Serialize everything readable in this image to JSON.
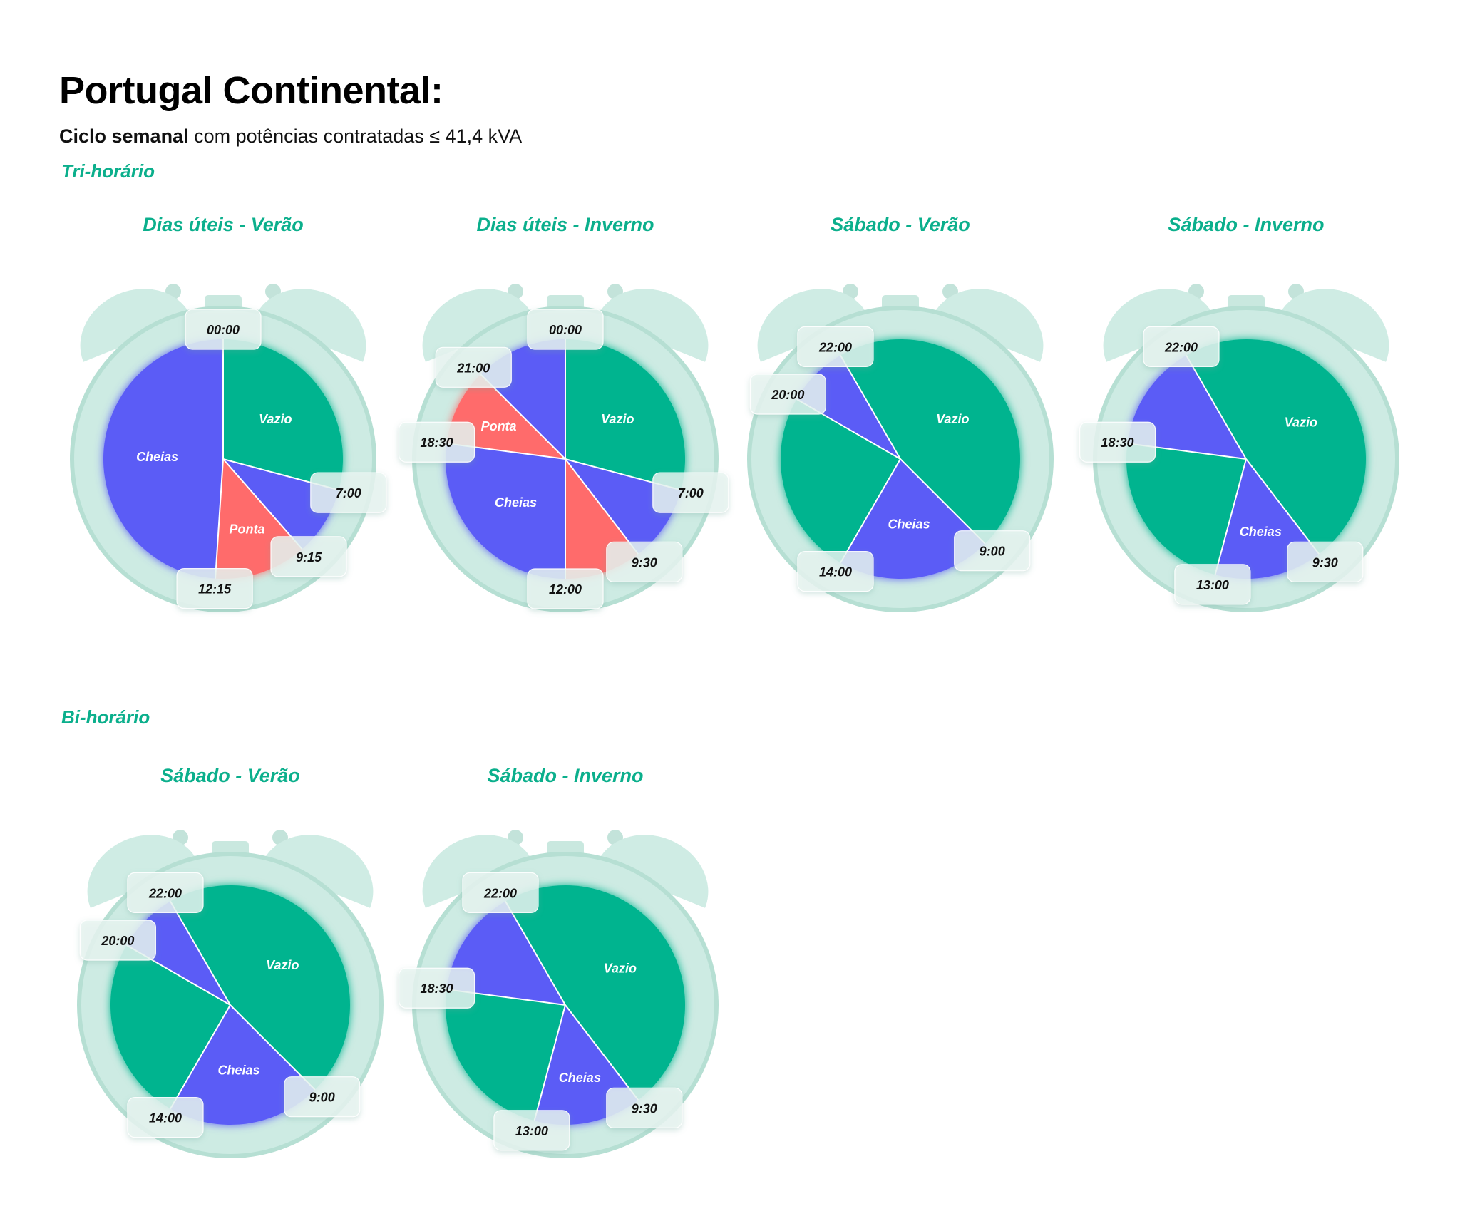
{
  "header": {
    "title": "Portugal Continental:",
    "subtitle_bold": "Ciclo semanal",
    "subtitle_rest": " com potências contratadas ≤ 41,4 kVA"
  },
  "colors": {
    "accent": "#0BAF8C",
    "vazio": "#00B48F",
    "cheias": "#5B5CF6",
    "ponta": "#FF6B6B",
    "clock_body": "#CDEBE3",
    "clock_rim": "#B6DFD3"
  },
  "sections": [
    {
      "title": "Tri-horário"
    },
    {
      "title": "Bi-horário"
    }
  ],
  "chart_data": [
    {
      "type": "pie",
      "title": "Dias úteis - Verão",
      "segments": [
        {
          "from": "00:00",
          "to": "7:00",
          "label": "Vazio",
          "category": "vazio"
        },
        {
          "from": "7:00",
          "to": "9:15",
          "label": "",
          "category": "cheias"
        },
        {
          "from": "9:15",
          "to": "12:15",
          "label": "Ponta",
          "category": "ponta"
        },
        {
          "from": "12:15",
          "to": "00:00",
          "label": "Cheias",
          "category": "cheias"
        }
      ]
    },
    {
      "type": "pie",
      "title": "Dias úteis - Inverno",
      "segments": [
        {
          "from": "00:00",
          "to": "7:00",
          "label": "Vazio",
          "category": "vazio"
        },
        {
          "from": "7:00",
          "to": "9:30",
          "label": "",
          "category": "cheias"
        },
        {
          "from": "9:30",
          "to": "12:00",
          "label": "",
          "category": "ponta"
        },
        {
          "from": "12:00",
          "to": "18:30",
          "label": "Cheias",
          "category": "cheias"
        },
        {
          "from": "18:30",
          "to": "21:00",
          "label": "Ponta",
          "category": "ponta"
        },
        {
          "from": "21:00",
          "to": "00:00",
          "label": "",
          "category": "cheias"
        }
      ]
    },
    {
      "type": "pie",
      "title": "Sábado - Verão",
      "segments": [
        {
          "from": "22:00",
          "to": "9:00",
          "label": "Vazio",
          "category": "vazio"
        },
        {
          "from": "9:00",
          "to": "14:00",
          "label": "Cheias",
          "category": "cheias"
        },
        {
          "from": "14:00",
          "to": "20:00",
          "label": "",
          "category": "vazio"
        },
        {
          "from": "20:00",
          "to": "22:00",
          "label": "",
          "category": "cheias"
        }
      ]
    },
    {
      "type": "pie",
      "title": "Sábado - Inverno",
      "segments": [
        {
          "from": "22:00",
          "to": "9:30",
          "label": "Vazio",
          "category": "vazio"
        },
        {
          "from": "9:30",
          "to": "13:00",
          "label": "Cheias",
          "category": "cheias"
        },
        {
          "from": "13:00",
          "to": "18:30",
          "label": "",
          "category": "vazio"
        },
        {
          "from": "18:30",
          "to": "22:00",
          "label": "",
          "category": "cheias"
        }
      ]
    },
    {
      "type": "pie",
      "title": "Sábado - Verão",
      "segments": [
        {
          "from": "22:00",
          "to": "9:00",
          "label": "Vazio",
          "category": "vazio"
        },
        {
          "from": "9:00",
          "to": "14:00",
          "label": "Cheias",
          "category": "cheias"
        },
        {
          "from": "14:00",
          "to": "20:00",
          "label": "",
          "category": "vazio"
        },
        {
          "from": "20:00",
          "to": "22:00",
          "label": "",
          "category": "cheias"
        }
      ]
    },
    {
      "type": "pie",
      "title": "Sábado - Inverno",
      "segments": [
        {
          "from": "22:00",
          "to": "9:30",
          "label": "Vazio",
          "category": "vazio"
        },
        {
          "from": "9:30",
          "to": "13:00",
          "label": "Cheias",
          "category": "cheias"
        },
        {
          "from": "13:00",
          "to": "18:30",
          "label": "",
          "category": "vazio"
        },
        {
          "from": "18:30",
          "to": "22:00",
          "label": "",
          "category": "cheias"
        }
      ]
    }
  ]
}
